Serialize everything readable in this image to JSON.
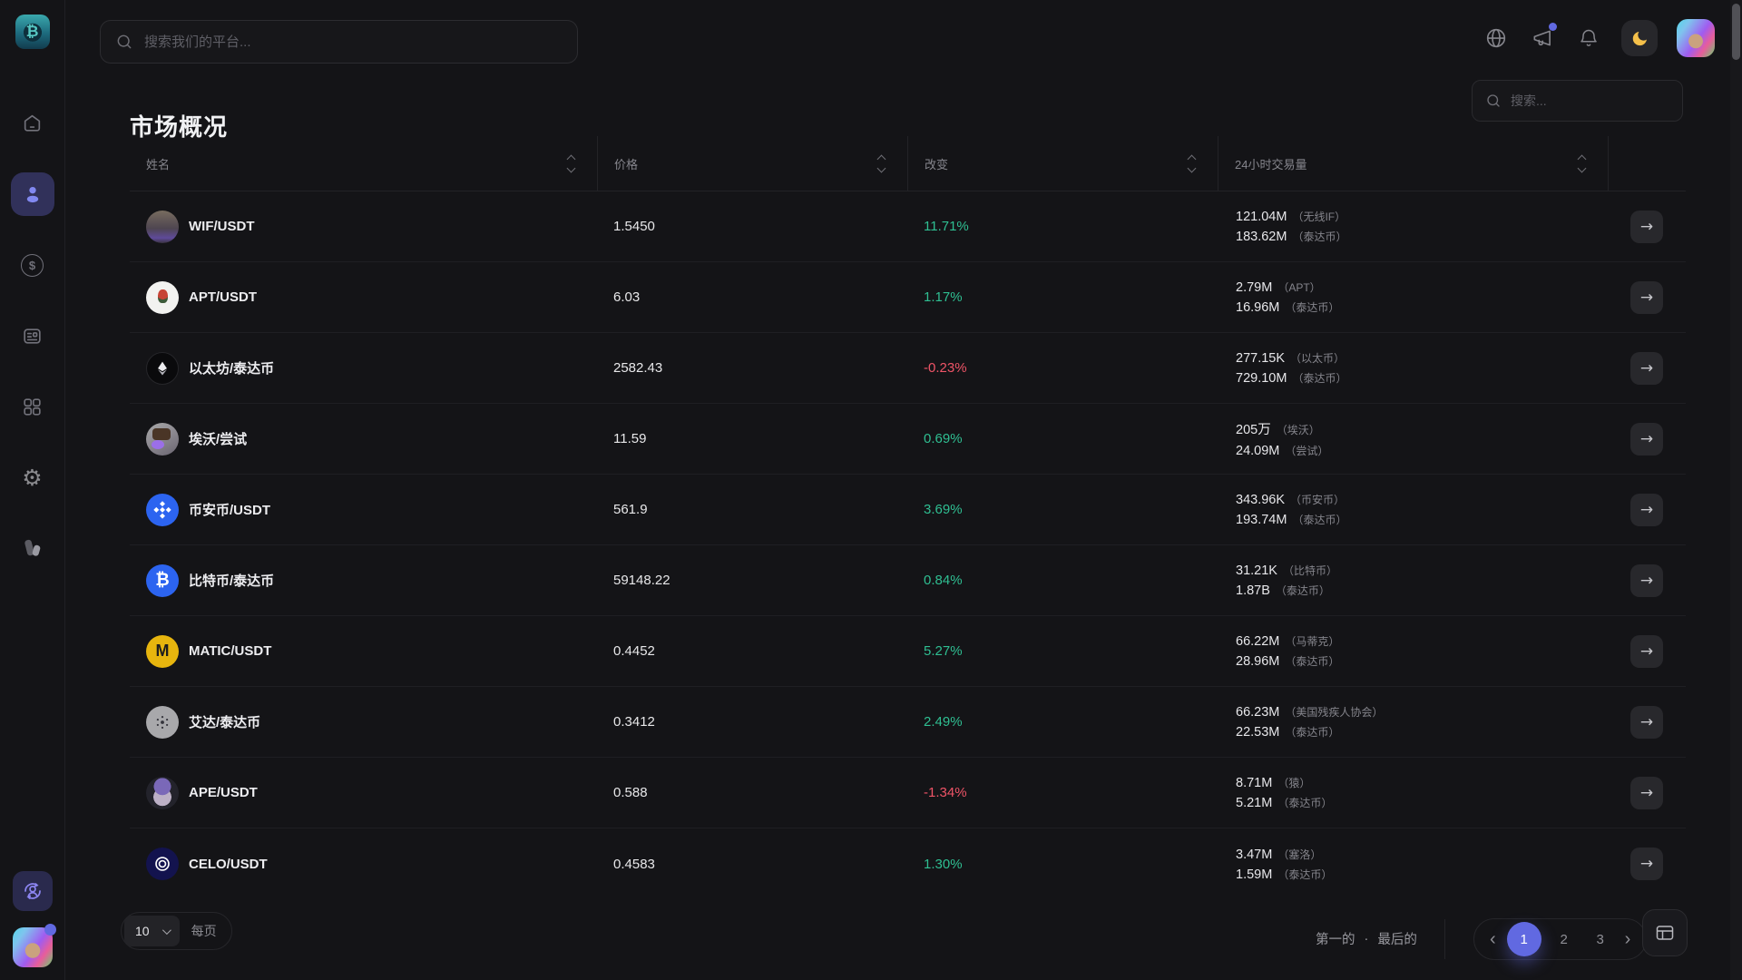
{
  "colors": {
    "accent": "#6169e1",
    "positive": "#2fbf92",
    "negative": "#ef5467",
    "moon": "#f5c04a"
  },
  "topbar": {
    "search_placeholder": "搜索我们的平台...",
    "icons": [
      "globe-icon",
      "megaphone-icon",
      "bell-icon",
      "moon-toggle",
      "user-avatar"
    ],
    "megaphone_has_badge": true
  },
  "sidebar": {
    "items": [
      {
        "icon": "home-icon",
        "active": false
      },
      {
        "icon": "user-icon",
        "active": true
      },
      {
        "icon": "dollar-circle-icon",
        "active": false,
        "glyph": "$"
      },
      {
        "icon": "invoice-icon",
        "active": false
      },
      {
        "icon": "grid-icon",
        "active": false
      },
      {
        "icon": "gear-icon",
        "active": false,
        "glyph": "⚙"
      },
      {
        "icon": "theme-swatch-icon",
        "active": false
      }
    ],
    "bottom": [
      "support-agent-button",
      "user-avatar-with-badge"
    ]
  },
  "page": {
    "title": "市场概况"
  },
  "table": {
    "search_placeholder": "搜索...",
    "columns": [
      {
        "label": "姓名"
      },
      {
        "label": "价格"
      },
      {
        "label": "改变"
      },
      {
        "label": "24小时交易量"
      }
    ],
    "rows": [
      {
        "icon": "wif-coin-icon",
        "pair": "WIF/USDT",
        "price": "1.5450",
        "change": "11.71%",
        "volumes": [
          {
            "value": "121.04M",
            "unit": "（无线IF）"
          },
          {
            "value": "183.62M",
            "unit": "（泰达币）"
          }
        ]
      },
      {
        "icon": "apt-coin-icon",
        "pair": "APT/USDT",
        "price": "6.03",
        "change": "1.17%",
        "volumes": [
          {
            "value": "2.79M",
            "unit": "（APT）"
          },
          {
            "value": "16.96M",
            "unit": "（泰达币）"
          }
        ]
      },
      {
        "icon": "eth-coin-icon",
        "pair": "以太坊/泰达币",
        "price": "2582.43",
        "change": "-0.23%",
        "volumes": [
          {
            "value": "277.15K",
            "unit": "（以太币）"
          },
          {
            "value": "729.10M",
            "unit": "（泰达币）"
          }
        ]
      },
      {
        "icon": "aevo-coin-icon",
        "pair": "埃沃/尝试",
        "price": "11.59",
        "change": "0.69%",
        "volumes": [
          {
            "value": "205万",
            "unit": "（埃沃）"
          },
          {
            "value": "24.09M",
            "unit": "（尝试）"
          }
        ]
      },
      {
        "icon": "bnb-coin-icon",
        "pair": "币安币/USDT",
        "price": "561.9",
        "change": "3.69%",
        "volumes": [
          {
            "value": "343.96K",
            "unit": "（币安币）"
          },
          {
            "value": "193.74M",
            "unit": "（泰达币）"
          }
        ]
      },
      {
        "icon": "btc-coin-icon",
        "pair": "比特币/泰达币",
        "price": "59148.22",
        "change": "0.84%",
        "volumes": [
          {
            "value": "31.21K",
            "unit": "（比特币）"
          },
          {
            "value": "1.87B",
            "unit": "（泰达币）"
          }
        ]
      },
      {
        "icon": "matic-coin-icon",
        "pair": "MATIC/USDT",
        "price": "0.4452",
        "change": "5.27%",
        "volumes": [
          {
            "value": "66.22M",
            "unit": "（马蒂克）"
          },
          {
            "value": "28.96M",
            "unit": "（泰达币）"
          }
        ]
      },
      {
        "icon": "ada-coin-icon",
        "pair": "艾达/泰达币",
        "price": "0.3412",
        "change": "2.49%",
        "volumes": [
          {
            "value": "66.23M",
            "unit": "（美国残疾人协会）"
          },
          {
            "value": "22.53M",
            "unit": "（泰达币）"
          }
        ]
      },
      {
        "icon": "ape-coin-icon",
        "pair": "APE/USDT",
        "price": "0.588",
        "change": "-1.34%",
        "volumes": [
          {
            "value": "8.71M",
            "unit": "（猿）"
          },
          {
            "value": "5.21M",
            "unit": "（泰达币）"
          }
        ]
      },
      {
        "icon": "celo-coin-icon",
        "pair": "CELO/USDT",
        "price": "0.4583",
        "change": "1.30%",
        "volumes": [
          {
            "value": "3.47M",
            "unit": "（塞洛）"
          },
          {
            "value": "1.59M",
            "unit": "（泰达币）"
          }
        ]
      }
    ]
  },
  "pagination": {
    "rows_per_page": {
      "value": "10",
      "label": "每页"
    },
    "links": {
      "first": "第一的",
      "separator": "·",
      "last": "最后的"
    },
    "pages": [
      "1",
      "2",
      "3"
    ],
    "active_page": "1",
    "prev_icon": "chevron-left-icon",
    "next_icon": "chevron-right-icon",
    "panel_icon": "layout-panel-icon"
  }
}
